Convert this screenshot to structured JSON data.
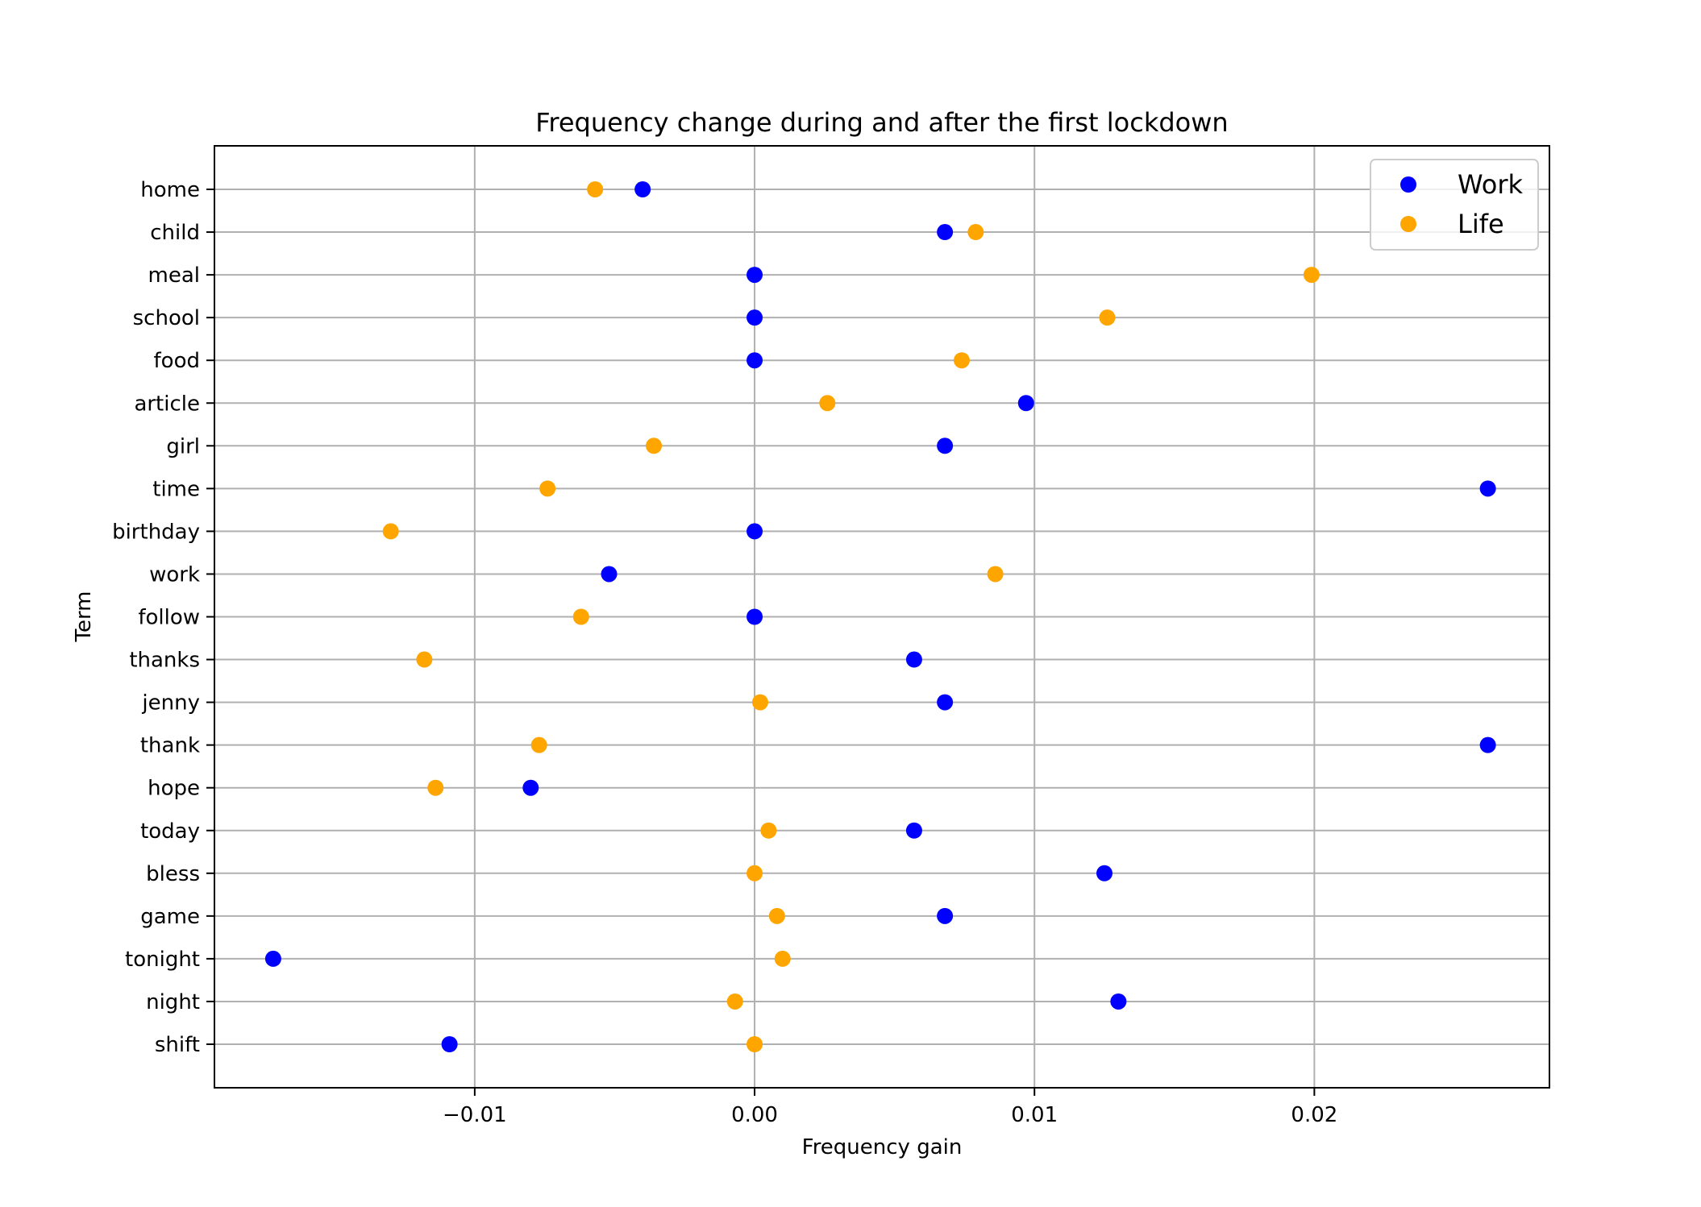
{
  "chart_data": {
    "type": "scatter",
    "title": "Frequency change during and after the first lockdown",
    "xlabel": "Frequency gain",
    "ylabel": "Term",
    "categories": [
      "home",
      "child",
      "meal",
      "school",
      "food",
      "article",
      "girl",
      "time",
      "birthday",
      "work",
      "follow",
      "thanks",
      "jenny",
      "thank",
      "hope",
      "today",
      "bless",
      "game",
      "tonight",
      "night",
      "shift"
    ],
    "xlim": [
      -0.0193,
      0.0284
    ],
    "xticks": [
      -0.01,
      0.0,
      0.01,
      0.02
    ],
    "xtick_labels": [
      "−0.01",
      "0.00",
      "0.01",
      "0.02"
    ],
    "grid": true,
    "legend_position": "top-right",
    "series": [
      {
        "name": "Work",
        "color": "#0000ff",
        "values": [
          -0.004,
          0.0068,
          0.0,
          0.0,
          0.0,
          0.0097,
          0.0068,
          0.0262,
          0.0,
          -0.0052,
          0.0,
          0.0057,
          0.0068,
          0.0262,
          -0.008,
          0.0057,
          0.0125,
          0.0068,
          -0.0172,
          0.013,
          -0.0109
        ]
      },
      {
        "name": "Life",
        "color": "#ffa500",
        "values": [
          -0.0057,
          0.0079,
          0.0199,
          0.0126,
          0.0074,
          0.0026,
          -0.0036,
          -0.0074,
          -0.013,
          0.0086,
          -0.0062,
          -0.0118,
          0.0002,
          -0.0077,
          -0.0114,
          0.0005,
          0.0,
          0.0008,
          0.001,
          -0.0007,
          0.0
        ]
      }
    ]
  }
}
